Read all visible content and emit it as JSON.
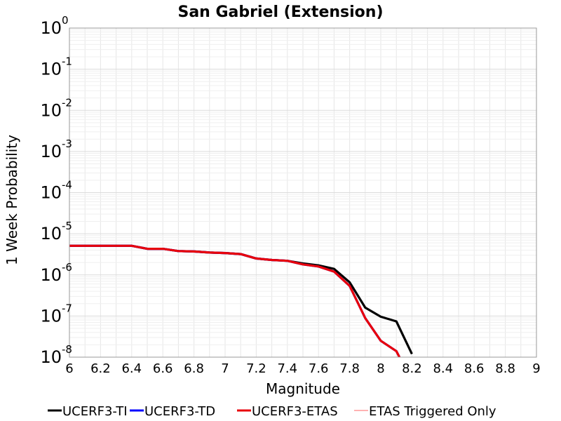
{
  "chart_data": {
    "type": "line",
    "title": "San Gabriel (Extension)",
    "xlabel": "Magnitude",
    "ylabel": "1 Week Probability",
    "xlim": [
      6,
      9
    ],
    "ylim": [
      1e-08,
      1
    ],
    "yscale": "log",
    "grid": true,
    "legend_position": "bottom",
    "x_ticks": [
      "6",
      "6.2",
      "6.4",
      "6.6",
      "6.8",
      "7",
      "7.2",
      "7.4",
      "7.6",
      "7.8",
      "8",
      "8.2",
      "8.4",
      "8.6",
      "8.8",
      "9"
    ],
    "y_ticks": [
      {
        "base": "10",
        "exp": "0"
      },
      {
        "base": "10",
        "exp": "-1"
      },
      {
        "base": "10",
        "exp": "-2"
      },
      {
        "base": "10",
        "exp": "-3"
      },
      {
        "base": "10",
        "exp": "-4"
      },
      {
        "base": "10",
        "exp": "-5"
      },
      {
        "base": "10",
        "exp": "-6"
      },
      {
        "base": "10",
        "exp": "-7"
      },
      {
        "base": "10",
        "exp": "-8"
      }
    ],
    "series": [
      {
        "name": "UCERF3-TI",
        "color": "#000000",
        "x": [
          6.0,
          6.1,
          6.2,
          6.3,
          6.4,
          6.5,
          6.6,
          6.7,
          6.8,
          6.9,
          7.0,
          7.1,
          7.2,
          7.3,
          7.4,
          7.5,
          7.6,
          7.7,
          7.8,
          7.9,
          8.0,
          8.1,
          8.2
        ],
        "y": [
          5.1e-06,
          5.1e-06,
          5.1e-06,
          5.1e-06,
          5.1e-06,
          4.3e-06,
          4.3e-06,
          3.8e-06,
          3.7e-06,
          3.5e-06,
          3.4e-06,
          3.2e-06,
          2.5e-06,
          2.3e-06,
          2.2e-06,
          1.9e-06,
          1.7e-06,
          1.4e-06,
          6.6e-07,
          1.6e-07,
          9.6e-08,
          7.4e-08,
          1.2e-08
        ]
      },
      {
        "name": "UCERF3-TD",
        "color": "#0000ff",
        "x": [
          6.0,
          6.1,
          6.2,
          6.3,
          6.4,
          6.5,
          6.6,
          6.7,
          6.8,
          6.9,
          7.0,
          7.1,
          7.2,
          7.3,
          7.4,
          7.5,
          7.6,
          7.7,
          7.8,
          7.9,
          8.0,
          8.1,
          8.12
        ],
        "y": [
          5.1e-06,
          5.1e-06,
          5.1e-06,
          5.1e-06,
          5.1e-06,
          4.3e-06,
          4.3e-06,
          3.8e-06,
          3.7e-06,
          3.5e-06,
          3.4e-06,
          3.2e-06,
          2.5e-06,
          2.3e-06,
          2.2e-06,
          1.8e-06,
          1.6e-06,
          1.2e-06,
          5.4e-07,
          8.9e-08,
          2.5e-08,
          1.4e-08,
          1e-08
        ]
      },
      {
        "name": "UCERF3-ETAS",
        "color": "#e8000b",
        "x": [
          6.0,
          6.1,
          6.2,
          6.3,
          6.4,
          6.5,
          6.6,
          6.7,
          6.8,
          6.9,
          7.0,
          7.1,
          7.2,
          7.3,
          7.4,
          7.5,
          7.6,
          7.7,
          7.8,
          7.9,
          8.0,
          8.1,
          8.12
        ],
        "y": [
          5.1e-06,
          5.1e-06,
          5.1e-06,
          5.1e-06,
          5.1e-06,
          4.3e-06,
          4.3e-06,
          3.8e-06,
          3.7e-06,
          3.5e-06,
          3.4e-06,
          3.2e-06,
          2.5e-06,
          2.3e-06,
          2.2e-06,
          1.8e-06,
          1.6e-06,
          1.2e-06,
          5.4e-07,
          8.9e-08,
          2.5e-08,
          1.4e-08,
          1e-08
        ]
      },
      {
        "name": "ETAS Triggered Only",
        "color": "#ff6666",
        "x": [],
        "y": []
      }
    ]
  }
}
